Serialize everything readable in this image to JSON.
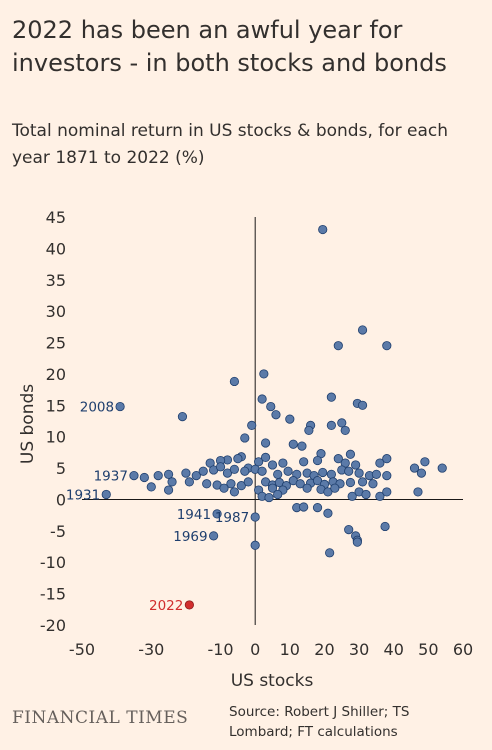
{
  "title": "2022 has been an awful year for investors - in both stocks and bonds",
  "subtitle": "Total nominal return in US stocks & bonds, for each year 1871 to 2022 (%)",
  "footer": {
    "brand": "FINANCIAL TIMES",
    "source": "Source: Robert J Shiller; TS Lombard; FT calculations"
  },
  "colors": {
    "background": "#fff1e5",
    "point": "#5b7aa8",
    "point_stroke": "#1f3f6e",
    "highlight": "#d12e2e",
    "label": "#1f3f6e"
  },
  "chart_data": {
    "type": "scatter",
    "xlabel": "US stocks",
    "ylabel": "US bonds",
    "xlim": [
      -50,
      60
    ],
    "ylim": [
      -20,
      45
    ],
    "xticks": [
      -50,
      -30,
      -10,
      0,
      10,
      20,
      30,
      40,
      50,
      60
    ],
    "yticks": [
      -20,
      -15,
      -10,
      -5,
      0,
      5,
      10,
      15,
      20,
      25,
      30,
      35,
      40,
      45
    ],
    "grid": false,
    "labeled_points": [
      {
        "label": "2008",
        "x": -39,
        "y": 14.8
      },
      {
        "label": "1937",
        "x": -35,
        "y": 3.8
      },
      {
        "label": "1931",
        "x": -43,
        "y": 0.8
      },
      {
        "label": "1941",
        "x": -11,
        "y": -2.3
      },
      {
        "label": "1987",
        "x": 0,
        "y": -2.8
      },
      {
        "label": "1969",
        "x": -12,
        "y": -5.8
      },
      {
        "label": "2022",
        "x": -19,
        "y": -16.8,
        "highlight": true
      }
    ],
    "points": [
      [
        19.5,
        43
      ],
      [
        31,
        27
      ],
      [
        24,
        24.5
      ],
      [
        38,
        24.5
      ],
      [
        2.5,
        20
      ],
      [
        -6,
        18.8
      ],
      [
        22,
        16.3
      ],
      [
        2,
        16
      ],
      [
        29.5,
        15.3
      ],
      [
        31,
        15
      ],
      [
        4.5,
        14.8
      ],
      [
        -21,
        13.2
      ],
      [
        6,
        13.5
      ],
      [
        10,
        12.8
      ],
      [
        16,
        11.8
      ],
      [
        25,
        12.2
      ],
      [
        -1,
        11.8
      ],
      [
        22,
        11.8
      ],
      [
        15.5,
        11
      ],
      [
        26,
        11
      ],
      [
        -3,
        9.8
      ],
      [
        3,
        9
      ],
      [
        11,
        8.8
      ],
      [
        13.5,
        8.5
      ],
      [
        19,
        7.3
      ],
      [
        27.5,
        7.2
      ],
      [
        -4,
        6.8
      ],
      [
        -5,
        6.5
      ],
      [
        -8,
        6.3
      ],
      [
        -10,
        6.2
      ],
      [
        1,
        6
      ],
      [
        3,
        6.7
      ],
      [
        5,
        5.5
      ],
      [
        8,
        5.8
      ],
      [
        14,
        6
      ],
      [
        18,
        6.2
      ],
      [
        24,
        6.5
      ],
      [
        26,
        5.8
      ],
      [
        29,
        5.5
      ],
      [
        36,
        5.8
      ],
      [
        38,
        6.5
      ],
      [
        49,
        6
      ],
      [
        54,
        5
      ],
      [
        -13,
        5.8
      ],
      [
        -2,
        5
      ],
      [
        0,
        4.8
      ],
      [
        2,
        4.5
      ],
      [
        6.5,
        4
      ],
      [
        9.5,
        4.5
      ],
      [
        12,
        4
      ],
      [
        15,
        4.2
      ],
      [
        17,
        3.8
      ],
      [
        19.5,
        4.3
      ],
      [
        22,
        4
      ],
      [
        25,
        4.7
      ],
      [
        27,
        4.5
      ],
      [
        30,
        4.2
      ],
      [
        33,
        3.8
      ],
      [
        35,
        4
      ],
      [
        38,
        3.8
      ],
      [
        46,
        5
      ],
      [
        48,
        4.2
      ],
      [
        -20,
        4.2
      ],
      [
        -17,
        3.8
      ],
      [
        -15,
        4.5
      ],
      [
        -12,
        4.7
      ],
      [
        -10,
        5.2
      ],
      [
        -8,
        4.2
      ],
      [
        -6,
        4.8
      ],
      [
        -3,
        4.5
      ],
      [
        -25,
        4
      ],
      [
        -28,
        3.8
      ],
      [
        -32,
        3.5
      ],
      [
        -24,
        2.8
      ],
      [
        -19,
        2.8
      ],
      [
        -14,
        2.5
      ],
      [
        -11,
        2.3
      ],
      [
        -7,
        2.5
      ],
      [
        -4,
        2.2
      ],
      [
        -2,
        2.8
      ],
      [
        3,
        2.8
      ],
      [
        5,
        2.3
      ],
      [
        7,
        2.7
      ],
      [
        9,
        2.2
      ],
      [
        11,
        3
      ],
      [
        13,
        2.5
      ],
      [
        16,
        2.6
      ],
      [
        18,
        3
      ],
      [
        20,
        2.4
      ],
      [
        22.5,
        2.8
      ],
      [
        24.5,
        2.5
      ],
      [
        27.5,
        2.7
      ],
      [
        31,
        2.8
      ],
      [
        34,
        2.5
      ],
      [
        -30,
        2
      ],
      [
        -25,
        1.5
      ],
      [
        -9,
        1.8
      ],
      [
        -6,
        1.2
      ],
      [
        1,
        1.5
      ],
      [
        5,
        1.8
      ],
      [
        8,
        1.5
      ],
      [
        15,
        1.8
      ],
      [
        19,
        1.6
      ],
      [
        21,
        1.2
      ],
      [
        23,
        1.8
      ],
      [
        28,
        0.5
      ],
      [
        30,
        1.2
      ],
      [
        32,
        0.8
      ],
      [
        36,
        0.5
      ],
      [
        38,
        1.2
      ],
      [
        47,
        1.2
      ],
      [
        2,
        0.5
      ],
      [
        4,
        0.3
      ],
      [
        6.5,
        0.8
      ],
      [
        12,
        -1.3
      ],
      [
        14,
        -1.2
      ],
      [
        18,
        -1.3
      ],
      [
        21,
        -2.2
      ],
      [
        27,
        -4.8
      ],
      [
        29,
        -5.8
      ],
      [
        29.5,
        -6.5
      ],
      [
        37.5,
        -4.3
      ],
      [
        21.5,
        -8.5
      ],
      [
        0,
        -7.3
      ],
      [
        29.5,
        -6.8
      ]
    ]
  }
}
